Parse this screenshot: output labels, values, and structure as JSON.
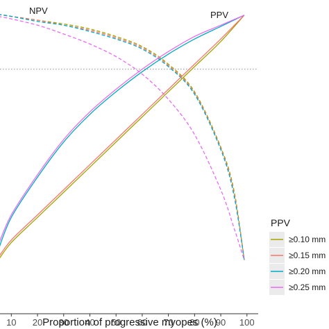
{
  "chart_data": {
    "type": "line",
    "xlabel": "Proportion of progressive myopes (%)",
    "ylabel": "",
    "xlim": [
      6,
      102
    ],
    "ylim": [
      0,
      1
    ],
    "xticks": [
      10,
      20,
      30,
      40,
      50,
      60,
      70,
      80,
      90,
      100
    ],
    "grid": false,
    "annotations": [
      {
        "id": "npv",
        "text": "NPV",
        "x": 12,
        "y": 1.0
      },
      {
        "id": "ppv",
        "text": "PPV",
        "x": 90,
        "y": 1.0
      }
    ],
    "reference_line": {
      "y": 0.78,
      "style": "dotted"
    },
    "legend": {
      "title": "PPV",
      "placement": "right",
      "entries": [
        {
          "label": "≥0.10 mm",
          "color": "#a3a500"
        },
        {
          "label": "≥0.15 mm",
          "color": "#f8766d"
        },
        {
          "label": "≥0.20 mm",
          "color": "#00a9c7"
        },
        {
          "label": "≥0.25 mm",
          "color": "#e76bf3"
        }
      ]
    },
    "series": [
      {
        "metric": "PPV",
        "color": "#a3a500",
        "dash": "solid",
        "x": [
          5,
          10,
          20,
          30,
          40,
          50,
          60,
          70,
          80,
          90,
          99
        ],
        "y": [
          0.02,
          0.09,
          0.19,
          0.29,
          0.39,
          0.49,
          0.59,
          0.69,
          0.79,
          0.89,
          0.995
        ]
      },
      {
        "metric": "PPV",
        "color": "#f8766d",
        "dash": "solid",
        "x": [
          5,
          10,
          20,
          30,
          40,
          50,
          60,
          70,
          80,
          90,
          99
        ],
        "y": [
          0.03,
          0.1,
          0.2,
          0.3,
          0.4,
          0.5,
          0.6,
          0.7,
          0.8,
          0.9,
          0.995
        ]
      },
      {
        "metric": "PPV",
        "color": "#00a9c7",
        "dash": "solid",
        "x": [
          5,
          10,
          20,
          30,
          40,
          50,
          60,
          70,
          80,
          90,
          99
        ],
        "y": [
          0.06,
          0.19,
          0.35,
          0.49,
          0.6,
          0.69,
          0.77,
          0.84,
          0.9,
          0.95,
          0.995
        ]
      },
      {
        "metric": "PPV",
        "color": "#e76bf3",
        "dash": "solid",
        "x": [
          5,
          10,
          20,
          30,
          40,
          50,
          60,
          70,
          80,
          90,
          99
        ],
        "y": [
          0.08,
          0.2,
          0.36,
          0.5,
          0.61,
          0.7,
          0.78,
          0.85,
          0.91,
          0.955,
          0.995
        ]
      },
      {
        "metric": "NPV",
        "color": "#a3a500",
        "dash": "dashed",
        "x": [
          5,
          10,
          20,
          30,
          40,
          50,
          60,
          70,
          80,
          90,
          95,
          99
        ],
        "y": [
          0.998,
          0.99,
          0.975,
          0.96,
          0.94,
          0.91,
          0.87,
          0.8,
          0.69,
          0.47,
          0.3,
          0.02
        ]
      },
      {
        "metric": "NPV",
        "color": "#f8766d",
        "dash": "dashed",
        "x": [
          5,
          10,
          20,
          30,
          40,
          50,
          60,
          70,
          80,
          90,
          95,
          99
        ],
        "y": [
          0.998,
          0.99,
          0.975,
          0.955,
          0.935,
          0.905,
          0.865,
          0.795,
          0.685,
          0.465,
          0.29,
          0.02
        ]
      },
      {
        "metric": "NPV",
        "color": "#00a9c7",
        "dash": "dashed",
        "x": [
          5,
          10,
          20,
          30,
          40,
          50,
          60,
          70,
          80,
          90,
          95,
          99
        ],
        "y": [
          0.998,
          0.99,
          0.97,
          0.955,
          0.93,
          0.9,
          0.86,
          0.79,
          0.68,
          0.46,
          0.28,
          0.02
        ]
      },
      {
        "metric": "NPV",
        "color": "#e76bf3",
        "dash": "dashed",
        "x": [
          5,
          10,
          20,
          30,
          40,
          50,
          60,
          70,
          80,
          90,
          95,
          99
        ],
        "y": [
          0.99,
          0.98,
          0.955,
          0.92,
          0.88,
          0.83,
          0.76,
          0.66,
          0.52,
          0.3,
          0.15,
          0.02
        ]
      }
    ]
  }
}
